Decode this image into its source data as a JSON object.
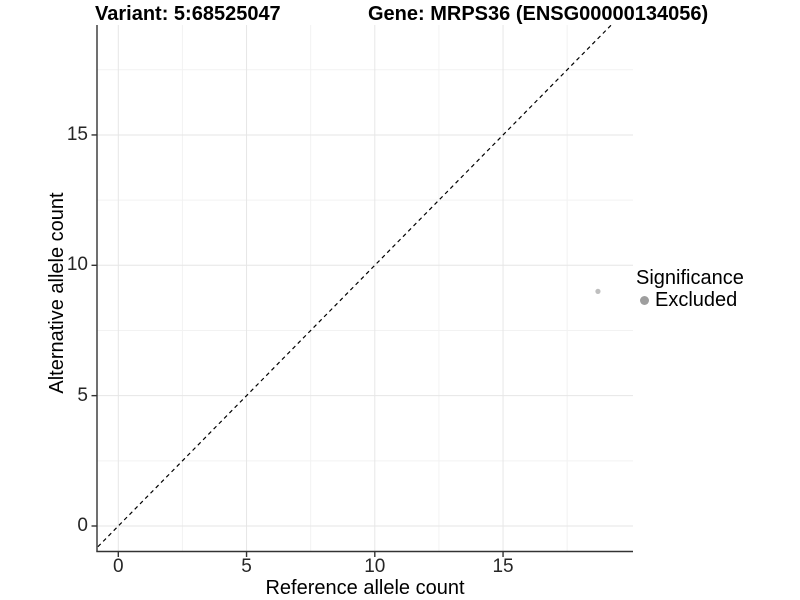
{
  "header": {
    "variant_title": "Variant: 5:68525047",
    "gene_title": "Gene: MRPS36 (ENSG00000134056)"
  },
  "legend": {
    "title": "Significance",
    "entries": [
      {
        "label": "Excluded",
        "key_color": "#9e9e9e"
      }
    ]
  },
  "chart_data": {
    "type": "scatter",
    "title": "Variant: 5:68525047 | Gene: MRPS36 (ENSG00000134056)",
    "xlabel": "Reference allele count",
    "ylabel": "Alternative allele count",
    "x_ticks": [
      0,
      5,
      10,
      15
    ],
    "y_ticks": [
      0,
      5,
      10,
      15
    ],
    "xlim": [
      -0.85,
      20.1
    ],
    "ylim": [
      -1.0,
      19.2
    ],
    "grid": "major+minor",
    "legend_position": "right",
    "series": [
      {
        "name": "Excluded",
        "color": "#bfbfbf",
        "points": [
          [
            18.7,
            9.0
          ]
        ]
      }
    ],
    "reference_line": {
      "kind": "identity y=x",
      "style": "dashed",
      "color": "#000000",
      "span": [
        -1.0,
        19.6
      ]
    }
  },
  "colors": {
    "background": "#ffffff",
    "grid_major": "#e6e6e6",
    "grid_minor": "#f2f2f2",
    "axis": "#333333",
    "tick_text": "#262626",
    "title_text": "#000000",
    "point": "#bfbfbf",
    "legend_key": "#9e9e9e"
  }
}
